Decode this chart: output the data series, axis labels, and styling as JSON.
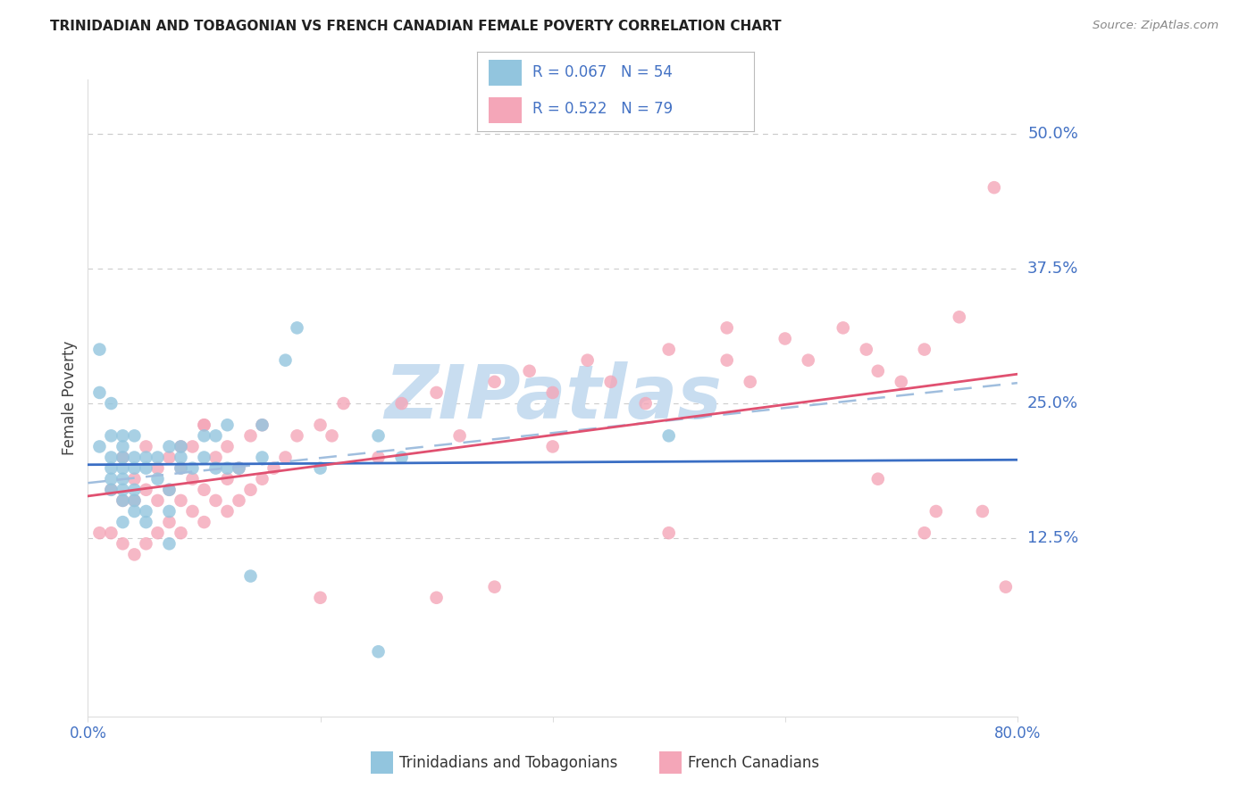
{
  "title": "TRINIDADIAN AND TOBAGONIAN VS FRENCH CANADIAN FEMALE POVERTY CORRELATION CHART",
  "source": "Source: ZipAtlas.com",
  "ylabel": "Female Poverty",
  "ytick_labels": [
    "50.0%",
    "37.5%",
    "25.0%",
    "12.5%"
  ],
  "ytick_values": [
    0.5,
    0.375,
    0.25,
    0.125
  ],
  "xlim": [
    0.0,
    0.8
  ],
  "ylim": [
    -0.04,
    0.55
  ],
  "xtick_positions": [
    0.0,
    0.2,
    0.4,
    0.6,
    0.8
  ],
  "xtick_labels": [
    "0.0%",
    "",
    "",
    "",
    "80.0%"
  ],
  "blue_color": "#92c5de",
  "pink_color": "#f4a6b8",
  "blue_line_color": "#3a6ec4",
  "pink_line_color": "#e05070",
  "dashed_line_color": "#a0bede",
  "grid_color": "#cccccc",
  "title_color": "#222222",
  "right_label_color": "#4472c4",
  "watermark_text": "ZIPatlas",
  "watermark_color": "#c8ddf0",
  "legend_label1": "Trinidadians and Tobagonians",
  "legend_label2": "French Canadians",
  "blue_scatter_x": [
    0.01,
    0.01,
    0.02,
    0.02,
    0.02,
    0.02,
    0.02,
    0.03,
    0.03,
    0.03,
    0.03,
    0.03,
    0.03,
    0.03,
    0.04,
    0.04,
    0.04,
    0.04,
    0.04,
    0.05,
    0.05,
    0.05,
    0.05,
    0.06,
    0.06,
    0.07,
    0.07,
    0.07,
    0.08,
    0.08,
    0.08,
    0.09,
    0.1,
    0.1,
    0.11,
    0.11,
    0.12,
    0.12,
    0.13,
    0.14,
    0.15,
    0.15,
    0.17,
    0.18,
    0.2,
    0.25,
    0.25,
    0.27,
    0.5,
    0.01,
    0.02,
    0.03,
    0.04,
    0.07
  ],
  "blue_scatter_y": [
    0.21,
    0.26,
    0.17,
    0.18,
    0.19,
    0.2,
    0.22,
    0.14,
    0.16,
    0.17,
    0.18,
    0.19,
    0.2,
    0.21,
    0.15,
    0.16,
    0.17,
    0.19,
    0.2,
    0.14,
    0.15,
    0.19,
    0.2,
    0.18,
    0.2,
    0.15,
    0.17,
    0.21,
    0.19,
    0.2,
    0.21,
    0.19,
    0.2,
    0.22,
    0.19,
    0.22,
    0.19,
    0.23,
    0.19,
    0.09,
    0.2,
    0.23,
    0.29,
    0.32,
    0.19,
    0.02,
    0.22,
    0.2,
    0.22,
    0.3,
    0.25,
    0.22,
    0.22,
    0.12
  ],
  "pink_scatter_x": [
    0.01,
    0.02,
    0.02,
    0.03,
    0.03,
    0.03,
    0.04,
    0.04,
    0.04,
    0.05,
    0.05,
    0.05,
    0.06,
    0.06,
    0.06,
    0.07,
    0.07,
    0.07,
    0.08,
    0.08,
    0.08,
    0.09,
    0.09,
    0.09,
    0.1,
    0.1,
    0.1,
    0.11,
    0.11,
    0.12,
    0.12,
    0.12,
    0.13,
    0.13,
    0.14,
    0.14,
    0.15,
    0.15,
    0.16,
    0.17,
    0.18,
    0.2,
    0.21,
    0.22,
    0.25,
    0.27,
    0.3,
    0.32,
    0.35,
    0.38,
    0.4,
    0.43,
    0.45,
    0.48,
    0.5,
    0.55,
    0.57,
    0.6,
    0.62,
    0.65,
    0.67,
    0.68,
    0.7,
    0.72,
    0.73,
    0.75,
    0.77,
    0.78,
    0.79,
    0.4,
    0.55,
    0.68,
    0.72,
    0.5,
    0.3,
    0.2,
    0.35,
    0.08,
    0.1
  ],
  "pink_scatter_y": [
    0.13,
    0.13,
    0.17,
    0.12,
    0.16,
    0.2,
    0.11,
    0.16,
    0.18,
    0.12,
    0.17,
    0.21,
    0.13,
    0.16,
    0.19,
    0.14,
    0.17,
    0.2,
    0.13,
    0.16,
    0.19,
    0.15,
    0.18,
    0.21,
    0.14,
    0.17,
    0.23,
    0.16,
    0.2,
    0.15,
    0.18,
    0.21,
    0.16,
    0.19,
    0.17,
    0.22,
    0.18,
    0.23,
    0.19,
    0.2,
    0.22,
    0.23,
    0.22,
    0.25,
    0.2,
    0.25,
    0.26,
    0.22,
    0.27,
    0.28,
    0.26,
    0.29,
    0.27,
    0.25,
    0.3,
    0.29,
    0.27,
    0.31,
    0.29,
    0.32,
    0.3,
    0.28,
    0.27,
    0.13,
    0.15,
    0.33,
    0.15,
    0.45,
    0.08,
    0.21,
    0.32,
    0.18,
    0.3,
    0.13,
    0.07,
    0.07,
    0.08,
    0.21,
    0.23
  ]
}
